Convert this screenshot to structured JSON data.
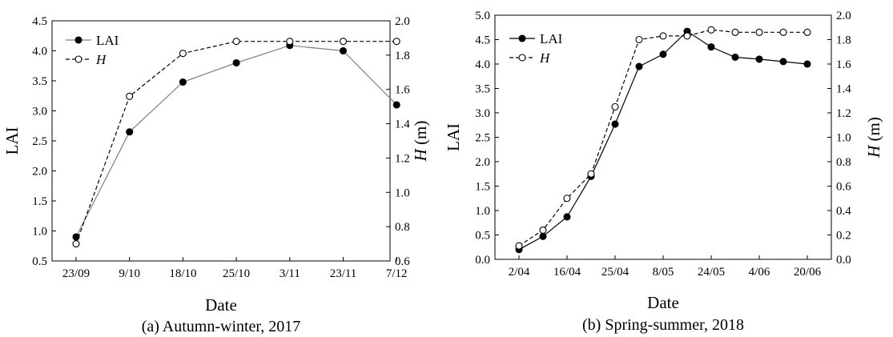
{
  "chart_data": [
    {
      "type": "line",
      "caption": "(a) Autumn-winter, 2017",
      "xlabel": "Date",
      "ylabel_left": "LAI",
      "ylabel_right_italic": "H",
      "ylabel_right_unit": " (m)",
      "categories": [
        "23/09",
        "9/10",
        "18/10",
        "25/10",
        "3/11",
        "23/11",
        "7/12"
      ],
      "ylim_left": [
        0.5,
        4.5
      ],
      "yticks_left": [
        "0.5",
        "1.0",
        "1.5",
        "2.0",
        "2.5",
        "3.0",
        "3.5",
        "4.0",
        "4.5"
      ],
      "ylim_right": [
        0.6,
        2.0
      ],
      "yticks_right": [
        "0.6",
        "0.8",
        "1.0",
        "1.2",
        "1.4",
        "1.6",
        "1.8",
        "2.0"
      ],
      "legend": "top-left",
      "grid": false,
      "series": [
        {
          "name": "LAI",
          "axis": "left",
          "style": "solid-filled",
          "color": "#000000",
          "line_color": "#808080",
          "x": [
            0,
            1,
            2,
            3,
            4,
            5,
            6
          ],
          "values": [
            0.9,
            2.65,
            3.48,
            3.8,
            4.09,
            4.0,
            3.1
          ]
        },
        {
          "name": "H",
          "name_italic": true,
          "axis": "right",
          "style": "dashed-open",
          "color": "#000000",
          "x": [
            0,
            1,
            2,
            3,
            4,
            5,
            6
          ],
          "values": [
            0.7,
            1.56,
            1.81,
            1.88,
            1.88,
            1.88,
            1.88
          ]
        }
      ]
    },
    {
      "type": "line",
      "caption": "(b) Spring-summer, 2018",
      "xlabel": "Date",
      "ylabel_left": "LAI",
      "ylabel_right_italic": "H",
      "ylabel_right_unit": " (m)",
      "categories": [
        "2/04",
        "16/04",
        "25/04",
        "8/05",
        "24/05",
        "4/06",
        "20/06"
      ],
      "ylim_left": [
        0.0,
        5.0
      ],
      "yticks_left": [
        "0.0",
        "0.5",
        "1.0",
        "1.5",
        "2.0",
        "2.5",
        "3.0",
        "3.5",
        "4.0",
        "4.5",
        "5.0"
      ],
      "ylim_right": [
        0.0,
        2.0
      ],
      "yticks_right": [
        "0.0",
        "0.2",
        "0.4",
        "0.6",
        "0.8",
        "1.0",
        "1.2",
        "1.4",
        "1.6",
        "1.8",
        "2.0"
      ],
      "legend": "top-left",
      "grid": false,
      "series": [
        {
          "name": "LAI",
          "axis": "left",
          "style": "solid-filled",
          "color": "#000000",
          "line_color": "#000000",
          "x": [
            0,
            0.5,
            1,
            1.5,
            2,
            2.5,
            3,
            3.5,
            4,
            4.5,
            5,
            5.5,
            6
          ],
          "values": [
            0.2,
            0.47,
            0.87,
            1.7,
            2.77,
            3.95,
            4.2,
            4.67,
            4.35,
            4.14,
            4.1,
            4.05,
            4.0
          ]
        },
        {
          "name": "H",
          "name_italic": true,
          "axis": "right",
          "style": "dashed-open",
          "color": "#000000",
          "x": [
            0,
            0.5,
            1,
            1.5,
            2,
            2.5,
            3,
            3.5,
            4,
            4.5,
            5,
            5.5,
            6
          ],
          "values": [
            0.11,
            0.24,
            0.5,
            0.7,
            1.25,
            1.8,
            1.83,
            1.83,
            1.88,
            1.86,
            1.86,
            1.86,
            1.86
          ]
        }
      ]
    }
  ]
}
